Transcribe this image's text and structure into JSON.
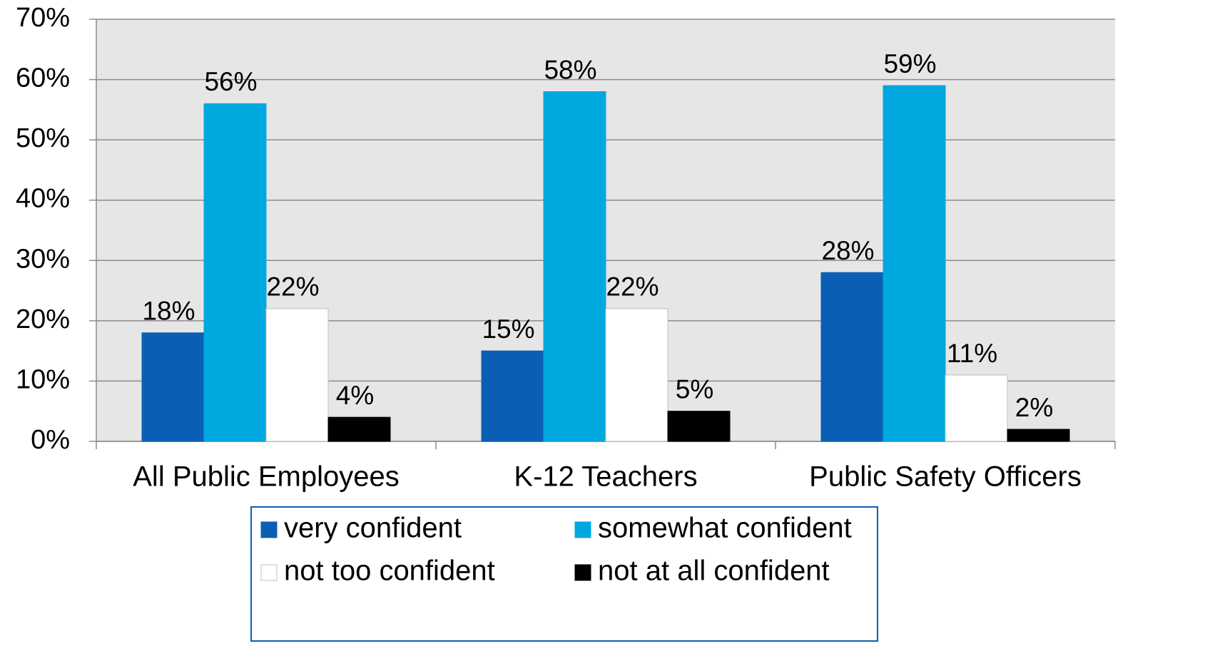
{
  "chart_data": {
    "type": "bar",
    "categories": [
      "All Public Employees",
      "K-12 Teachers",
      "Public Safety Officers"
    ],
    "series": [
      {
        "name": "very confident",
        "color": "#0a5fb4",
        "values": [
          18,
          15,
          28
        ],
        "value_labels": [
          "18%",
          "15%",
          "28%"
        ]
      },
      {
        "name": "somewhat confident",
        "color": "#00a8e0",
        "values": [
          56,
          58,
          59
        ],
        "value_labels": [
          "56%",
          "58%",
          "59%"
        ]
      },
      {
        "name": "not too confident",
        "color": "#ffffff",
        "values": [
          22,
          22,
          11
        ],
        "value_labels": [
          "22%",
          "22%",
          "11%"
        ]
      },
      {
        "name": "not at all confident",
        "color": "#000000",
        "values": [
          4,
          5,
          2
        ],
        "value_labels": [
          "4%",
          "5%",
          "2%"
        ]
      }
    ],
    "ylim": [
      0,
      70
    ],
    "yticks": [
      {
        "value": 0,
        "label": "0%"
      },
      {
        "value": 10,
        "label": "10%"
      },
      {
        "value": 20,
        "label": "20%"
      },
      {
        "value": 30,
        "label": "30%"
      },
      {
        "value": 40,
        "label": "40%"
      },
      {
        "value": 50,
        "label": "50%"
      },
      {
        "value": 60,
        "label": "60%"
      },
      {
        "value": 70,
        "label": "70%"
      }
    ],
    "grid": true,
    "legend": "bottom"
  }
}
